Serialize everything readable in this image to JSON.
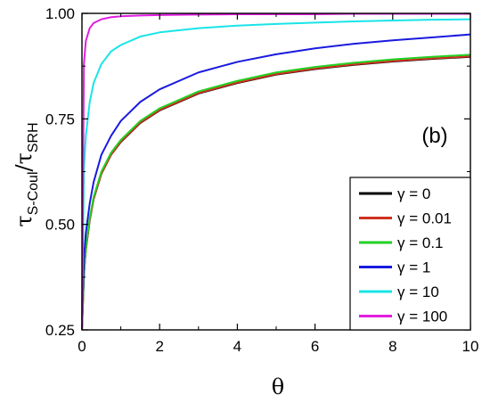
{
  "chart_data": {
    "type": "line",
    "title": "",
    "panel_label": "(b)",
    "xlabel": "θ",
    "ylabel": {
      "base": "τ",
      "num_sub": "S-Coul",
      "slash": "/",
      "den": "τ",
      "den_sub": "SRH"
    },
    "xlim": [
      0,
      10
    ],
    "ylim": [
      0.25,
      1.0
    ],
    "x_ticks": [
      "0",
      "2",
      "4",
      "6",
      "8",
      "10"
    ],
    "y_ticks": [
      "0.25",
      "0.50",
      "0.75",
      "1.00"
    ],
    "grid": false,
    "legend_position": "bottom-right",
    "x": [
      0,
      0.05,
      0.1,
      0.2,
      0.3,
      0.5,
      0.75,
      1,
      1.5,
      2,
      3,
      4,
      5,
      6,
      7,
      8,
      9,
      10
    ],
    "series": [
      {
        "name": "γ = 0",
        "color": "#000000",
        "values": [
          0.25,
          0.38,
          0.44,
          0.51,
          0.56,
          0.62,
          0.665,
          0.695,
          0.74,
          0.77,
          0.81,
          0.835,
          0.855,
          0.868,
          0.878,
          0.886,
          0.892,
          0.897
        ]
      },
      {
        "name": "γ = 0.01",
        "color": "#d03020",
        "values": [
          0.25,
          0.38,
          0.44,
          0.51,
          0.56,
          0.62,
          0.665,
          0.696,
          0.741,
          0.771,
          0.811,
          0.836,
          0.856,
          0.869,
          0.879,
          0.887,
          0.893,
          0.898
        ]
      },
      {
        "name": "γ = 0.1",
        "color": "#22d022",
        "values": [
          0.25,
          0.385,
          0.445,
          0.515,
          0.565,
          0.625,
          0.67,
          0.7,
          0.745,
          0.775,
          0.815,
          0.84,
          0.86,
          0.873,
          0.883,
          0.891,
          0.897,
          0.902
        ]
      },
      {
        "name": "γ = 1",
        "color": "#1a1adf",
        "values": [
          0.25,
          0.42,
          0.48,
          0.55,
          0.6,
          0.665,
          0.71,
          0.745,
          0.79,
          0.82,
          0.86,
          0.885,
          0.903,
          0.917,
          0.928,
          0.936,
          0.943,
          0.95
        ]
      },
      {
        "name": "γ = 10",
        "color": "#19e4e8",
        "values": [
          0.25,
          0.63,
          0.71,
          0.79,
          0.835,
          0.88,
          0.91,
          0.925,
          0.945,
          0.955,
          0.965,
          0.971,
          0.975,
          0.978,
          0.981,
          0.983,
          0.985,
          0.986
        ]
      },
      {
        "name": "γ = 100",
        "color": "#e21ee0",
        "values": [
          0.25,
          0.88,
          0.935,
          0.965,
          0.977,
          0.986,
          0.991,
          0.993,
          0.995,
          0.996,
          0.997,
          0.998,
          0.998,
          0.998,
          0.999,
          0.999,
          0.999,
          0.999
        ]
      }
    ]
  }
}
